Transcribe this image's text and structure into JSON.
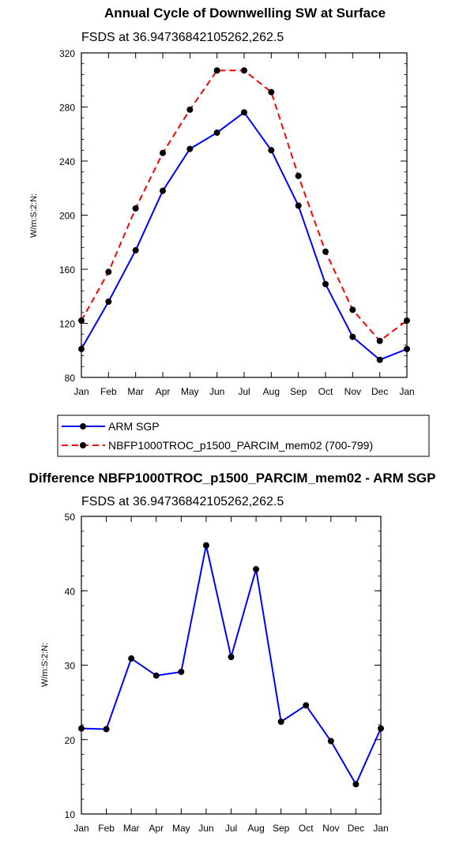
{
  "chart_data": [
    {
      "type": "line",
      "title": "Annual Cycle of Downwelling SW at Surface",
      "subtitle": "FSDS at 36.94736842105262,262.5",
      "ylabel": "W/m:S:2:N:",
      "xlabel": "",
      "categories": [
        "Jan",
        "Feb",
        "Mar",
        "Apr",
        "May",
        "Jun",
        "Jul",
        "Aug",
        "Sep",
        "Oct",
        "Nov",
        "Dec",
        "Jan"
      ],
      "ylim": [
        80,
        320
      ],
      "yticks": [
        80,
        120,
        160,
        200,
        240,
        280,
        320
      ],
      "grid": false,
      "legend_placement": "bottom",
      "series": [
        {
          "name": "ARM SGP",
          "color": "#0000ff",
          "dash": "solid",
          "values": [
            101,
            136,
            174,
            218,
            249,
            261,
            276,
            248,
            207,
            149,
            110,
            93,
            101
          ]
        },
        {
          "name": "NBFP1000TROC_p1500_PARCIM_mem02 (700-799)",
          "color": "#ff0000",
          "dash": "dashed",
          "values": [
            122,
            158,
            205,
            246,
            278,
            307,
            307,
            291,
            229,
            173,
            130,
            107,
            122
          ]
        }
      ]
    },
    {
      "type": "line",
      "title": "Difference NBFP1000TROC_p1500_PARCIM_mem02 - ARM SGP",
      "subtitle": "FSDS at 36.94736842105262,262.5",
      "ylabel": "W/m:S:2:N:",
      "xlabel": "",
      "categories": [
        "Jan",
        "Feb",
        "Mar",
        "Apr",
        "May",
        "Jun",
        "Jul",
        "Aug",
        "Sep",
        "Oct",
        "Nov",
        "Dec",
        "Jan"
      ],
      "ylim": [
        10,
        50
      ],
      "yticks": [
        10,
        20,
        30,
        40,
        50
      ],
      "grid": false,
      "series": [
        {
          "color": "#0000ff",
          "dash": "solid",
          "values": [
            21.5,
            21.4,
            30.9,
            28.6,
            29.1,
            46.1,
            31.1,
            42.9,
            22.4,
            24.6,
            19.8,
            14.0,
            21.5
          ]
        }
      ]
    }
  ]
}
